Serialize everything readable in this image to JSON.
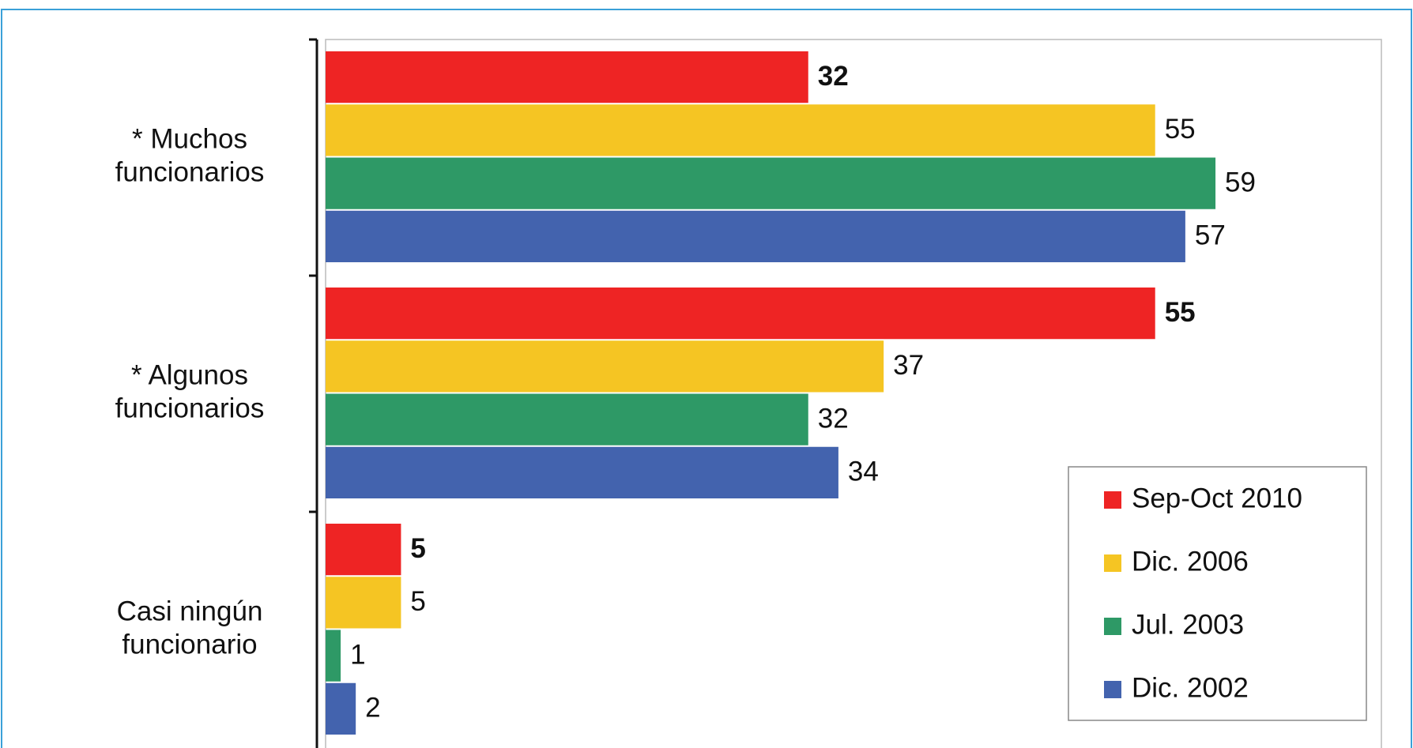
{
  "chart_data": {
    "type": "bar",
    "orientation": "horizontal",
    "categories": [
      "* Muchos funcionarios",
      "* Algunos funcionarios",
      "Casi ningún funcionario"
    ],
    "series": [
      {
        "name": "Sep-Oct 2010",
        "color": "#ee2424",
        "values": [
          32,
          55,
          5
        ]
      },
      {
        "name": "Dic. 2006",
        "color": "#f5c523",
        "values": [
          55,
          37,
          5
        ]
      },
      {
        "name": "Jul. 2003",
        "color": "#2e9966",
        "values": [
          59,
          32,
          1
        ]
      },
      {
        "name": "Dic. 2002",
        "color": "#4363ae",
        "values": [
          57,
          34,
          2
        ]
      }
    ],
    "xlim": [
      0,
      70
    ],
    "legend": "lower right"
  }
}
